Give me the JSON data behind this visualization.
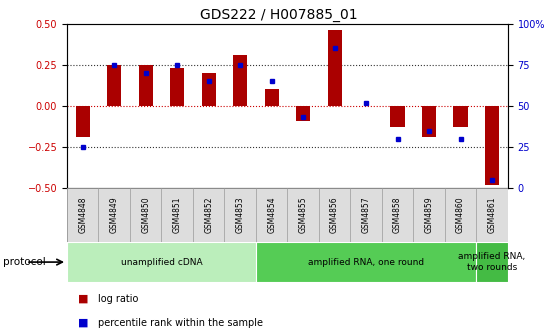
{
  "title": "GDS222 / H007885_01",
  "samples": [
    "GSM4848",
    "GSM4849",
    "GSM4850",
    "GSM4851",
    "GSM4852",
    "GSM4853",
    "GSM4854",
    "GSM4855",
    "GSM4856",
    "GSM4857",
    "GSM4858",
    "GSM4859",
    "GSM4860",
    "GSM4861"
  ],
  "log_ratio": [
    -0.19,
    0.25,
    0.25,
    0.23,
    0.2,
    0.31,
    0.1,
    -0.09,
    0.46,
    0.0,
    -0.13,
    -0.19,
    -0.13,
    -0.48
  ],
  "percentile_rank": [
    25,
    75,
    70,
    75,
    65,
    75,
    65,
    43,
    85,
    52,
    30,
    35,
    30,
    5
  ],
  "ylim_left": [
    -0.5,
    0.5
  ],
  "ylim_right": [
    0,
    100
  ],
  "yticks_left": [
    -0.5,
    -0.25,
    0.0,
    0.25,
    0.5
  ],
  "yticks_right": [
    0,
    25,
    50,
    75,
    100
  ],
  "bar_color": "#AA0000",
  "dot_color": "#0000CC",
  "hline_color": "#CC0000",
  "dotted_color": "#333333",
  "bg_color": "#ffffff",
  "plot_bg": "#ffffff",
  "protocol_groups": [
    {
      "label": "unamplified cDNA",
      "start": 0,
      "end": 5,
      "color": "#BBEEBB"
    },
    {
      "label": "amplified RNA, one round",
      "start": 6,
      "end": 12,
      "color": "#55CC55"
    },
    {
      "label": "amplified RNA,\ntwo rounds",
      "start": 13,
      "end": 13,
      "color": "#44BB44"
    }
  ],
  "legend_items": [
    {
      "label": "log ratio",
      "color": "#AA0000"
    },
    {
      "label": "percentile rank within the sample",
      "color": "#0000CC"
    }
  ],
  "protocol_label": "protocol",
  "title_fontsize": 10,
  "tick_fontsize": 7,
  "sample_fontsize": 5.5,
  "proto_fontsize": 6.5,
  "legend_fontsize": 7
}
